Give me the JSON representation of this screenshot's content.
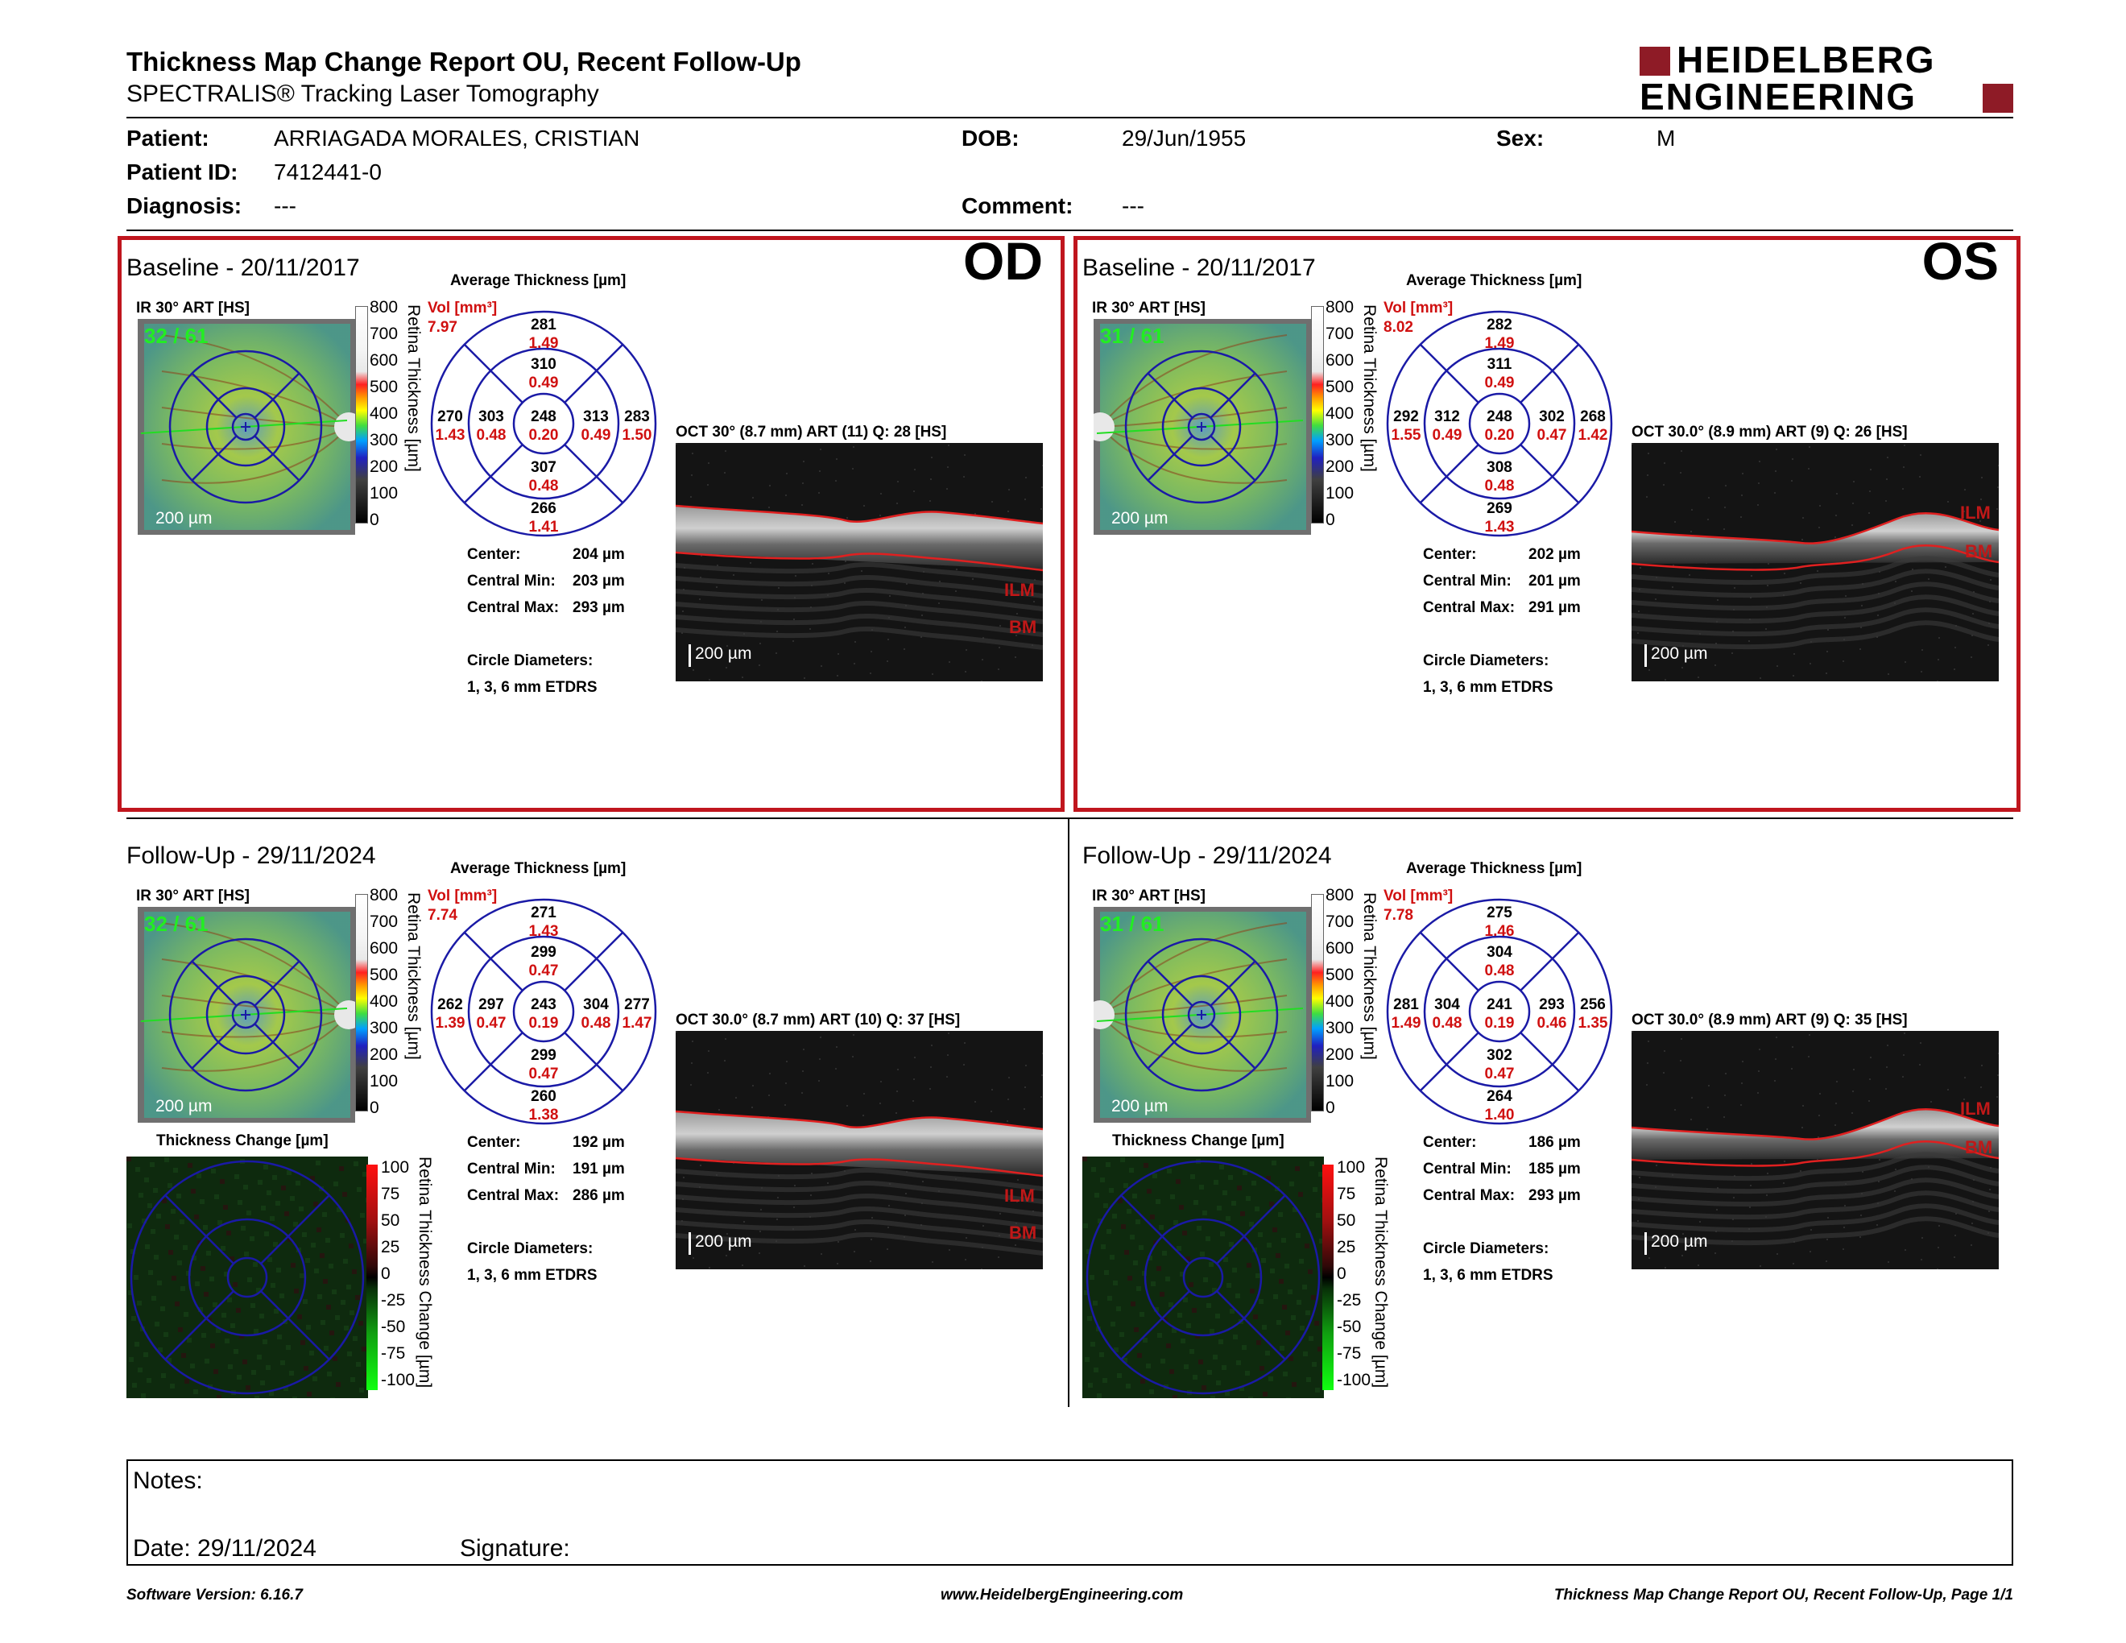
{
  "header": {
    "title": "Thickness Map Change Report OU, Recent Follow-Up",
    "subtitle": "SPECTRALIS® Tracking Laser Tomography",
    "logo_line1": "HEIDELBERG",
    "logo_line2": "ENGINEERING"
  },
  "patient": {
    "patient_label": "Patient:",
    "patient_name": "ARRIAGADA MORALES, CRISTIAN",
    "dob_label": "DOB:",
    "dob": "29/Jun/1955",
    "sex_label": "Sex:",
    "sex": "M",
    "id_label": "Patient ID:",
    "id": "7412441-0",
    "diagnosis_label": "Diagnosis:",
    "diagnosis": "---",
    "comment_label": "Comment:",
    "comment": "---"
  },
  "common": {
    "avg_thickness_title": "Average Thickness [µm]",
    "vol_label": "Vol [mm³]",
    "ir_scale": "200 µm",
    "oct_scale": "200 µm",
    "center_label": "Center:",
    "cmin_label": "Central Min:",
    "cmax_label": "Central Max:",
    "circ_label": "Circle Diameters:",
    "circ_value": "1, 3, 6 mm ETDRS",
    "ilm": "ILM",
    "bm": "BM",
    "colorbar_ticks": [
      "800",
      "700",
      "600",
      "500",
      "400",
      "300",
      "200",
      "100",
      "0"
    ],
    "colorbar_label": "Retina Thickness [µm]",
    "change_title": "Thickness Change [µm]",
    "change_ticks": [
      "100",
      "75",
      "50",
      "25",
      "0",
      "-25",
      "-50",
      "-75",
      "-100"
    ],
    "change_label": "Retina Thickness Change [µm]",
    "colors": {
      "frame": "#c0161e",
      "grid": "#1a1aa6",
      "value_red": "#d01010",
      "ilm": "#e02020"
    }
  },
  "panels": {
    "od_base": {
      "title": "Baseline - 20/11/2017",
      "eye": "OD",
      "ir_label": "IR 30° ART [HS]",
      "ir_count": "32 / 61",
      "vol": "7.97",
      "center_t": "248",
      "center_v": "0.20",
      "inner_sup_t": "310",
      "inner_sup_v": "0.49",
      "inner_inf_t": "307",
      "inner_inf_v": "0.48",
      "inner_l_t": "303",
      "inner_l_v": "0.48",
      "inner_r_t": "313",
      "inner_r_v": "0.49",
      "outer_sup_t": "281",
      "outer_sup_v": "1.49",
      "outer_inf_t": "266",
      "outer_inf_v": "1.41",
      "outer_l_t": "270",
      "outer_l_v": "1.43",
      "outer_r_t": "283",
      "outer_r_v": "1.50",
      "oct_label": "OCT 30° (8.7 mm) ART (11) Q: 28 [HS]",
      "center": "204 µm",
      "cmin": "203 µm",
      "cmax": "293 µm"
    },
    "os_base": {
      "title": "Baseline - 20/11/2017",
      "eye": "OS",
      "ir_label": "IR 30° ART [HS]",
      "ir_count": "31 / 61",
      "vol": "8.02",
      "center_t": "248",
      "center_v": "0.20",
      "inner_sup_t": "311",
      "inner_sup_v": "0.49",
      "inner_inf_t": "308",
      "inner_inf_v": "0.48",
      "inner_l_t": "312",
      "inner_l_v": "0.49",
      "inner_r_t": "302",
      "inner_r_v": "0.47",
      "outer_sup_t": "282",
      "outer_sup_v": "1.49",
      "outer_inf_t": "269",
      "outer_inf_v": "1.43",
      "outer_l_t": "292",
      "outer_l_v": "1.55",
      "outer_r_t": "268",
      "outer_r_v": "1.42",
      "oct_label": "OCT 30.0° (8.9 mm) ART (9) Q: 26 [HS]",
      "center": "202 µm",
      "cmin": "201 µm",
      "cmax": "291 µm"
    },
    "od_follow": {
      "title": "Follow-Up - 29/11/2024",
      "ir_label": "IR 30° ART [HS]",
      "ir_count": "32 / 61",
      "vol": "7.74",
      "center_t": "243",
      "center_v": "0.19",
      "inner_sup_t": "299",
      "inner_sup_v": "0.47",
      "inner_inf_t": "299",
      "inner_inf_v": "0.47",
      "inner_l_t": "297",
      "inner_l_v": "0.47",
      "inner_r_t": "304",
      "inner_r_v": "0.48",
      "outer_sup_t": "271",
      "outer_sup_v": "1.43",
      "outer_inf_t": "260",
      "outer_inf_v": "1.38",
      "outer_l_t": "262",
      "outer_l_v": "1.39",
      "outer_r_t": "277",
      "outer_r_v": "1.47",
      "oct_label": "OCT 30.0° (8.7 mm) ART (10) Q: 37 [HS]",
      "center": "192 µm",
      "cmin": "191 µm",
      "cmax": "286 µm"
    },
    "os_follow": {
      "title": "Follow-Up - 29/11/2024",
      "ir_label": "IR 30° ART [HS]",
      "ir_count": "31 / 61",
      "vol": "7.78",
      "center_t": "241",
      "center_v": "0.19",
      "inner_sup_t": "304",
      "inner_sup_v": "0.48",
      "inner_inf_t": "302",
      "inner_inf_v": "0.47",
      "inner_l_t": "304",
      "inner_l_v": "0.48",
      "inner_r_t": "293",
      "inner_r_v": "0.46",
      "outer_sup_t": "275",
      "outer_sup_v": "1.46",
      "outer_inf_t": "264",
      "outer_inf_v": "1.40",
      "outer_l_t": "281",
      "outer_l_v": "1.49",
      "outer_r_t": "256",
      "outer_r_v": "1.35",
      "oct_label": "OCT 30.0° (8.9 mm) ART (9) Q: 35 [HS]",
      "center": "186 µm",
      "cmin": "185 µm",
      "cmax": "293 µm"
    }
  },
  "notes": {
    "notes_label": "Notes:",
    "date_label": "Date: 29/11/2024",
    "signature_label": "Signature:"
  },
  "footer": {
    "software": "Software Version: 6.16.7",
    "website": "www.HeidelbergEngineering.com",
    "page": "Thickness Map Change Report OU, Recent Follow-Up, Page 1/1"
  }
}
